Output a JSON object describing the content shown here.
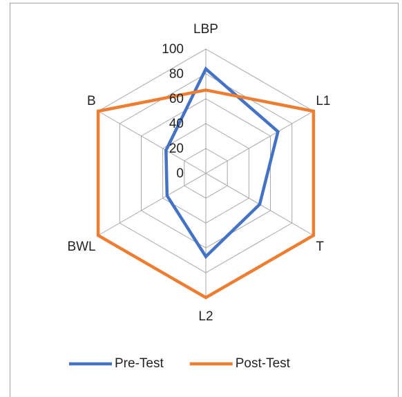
{
  "chart_data": {
    "type": "radar",
    "categories": [
      "LBP",
      "L1",
      "T",
      "L2",
      "BWL",
      "B"
    ],
    "series": [
      {
        "name": "Pre-Test",
        "color": "#4472c4",
        "values": [
          84,
          67,
          50,
          67,
          36,
          37
        ]
      },
      {
        "name": "Post-Test",
        "color": "#ed7d31",
        "values": [
          67,
          100,
          100,
          100,
          100,
          100
        ]
      }
    ],
    "ylim": [
      0,
      100
    ],
    "yticks": [
      0,
      20,
      40,
      60,
      80,
      100
    ],
    "grid": true,
    "legend": "bottom"
  }
}
